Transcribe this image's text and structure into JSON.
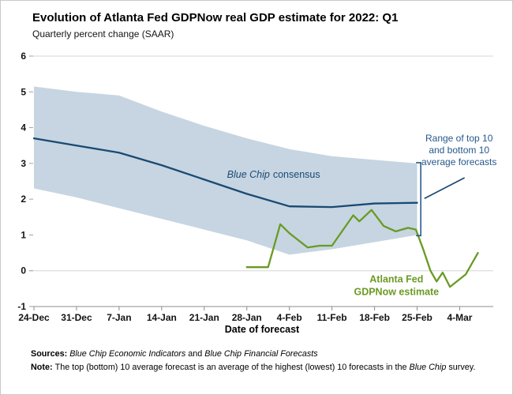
{
  "header": {
    "title": "Evolution of Atlanta Fed GDPNow real GDP estimate for 2022: Q1",
    "subtitle": "Quarterly percent change (SAAR)"
  },
  "chart_data": {
    "type": "line",
    "title": "Evolution of Atlanta Fed GDPNow real GDP estimate for 2022: Q1",
    "subtitle": "Quarterly percent change (SAAR)",
    "x_axis": {
      "label": "Date of forecast",
      "range_days": [
        0,
        75
      ],
      "tick_days": [
        0,
        7,
        14,
        21,
        28,
        35,
        42,
        49,
        56,
        63,
        70
      ],
      "tick_labels": [
        "24-Dec",
        "31-Dec",
        "7-Jan",
        "14-Jan",
        "21-Jan",
        "28-Jan",
        "4-Feb",
        "11-Feb",
        "18-Feb",
        "25-Feb",
        "4-Mar"
      ]
    },
    "y_axis": {
      "label": "Quarterly percent change (SAAR)",
      "range": [
        -1,
        6
      ],
      "ticks": [
        -1,
        0,
        1,
        2,
        3,
        4,
        5,
        6
      ],
      "gridlines_at": [
        0,
        6
      ]
    },
    "series": [
      {
        "name": "Range of top 10 and bottom 10 average forecasts",
        "type": "band",
        "color": "#c6d5e1",
        "points_top": [
          [
            0,
            5.15
          ],
          [
            7,
            5.0
          ],
          [
            14,
            4.9
          ],
          [
            21,
            4.45
          ],
          [
            28,
            4.05
          ],
          [
            35,
            3.7
          ],
          [
            42,
            3.4
          ],
          [
            49,
            3.2
          ],
          [
            56,
            3.1
          ],
          [
            63,
            3.0
          ]
        ],
        "points_bottom": [
          [
            0,
            2.3
          ],
          [
            7,
            2.05
          ],
          [
            14,
            1.75
          ],
          [
            21,
            1.45
          ],
          [
            28,
            1.15
          ],
          [
            35,
            0.85
          ],
          [
            42,
            0.45
          ],
          [
            49,
            0.6
          ],
          [
            56,
            0.8
          ],
          [
            63,
            1.0
          ]
        ]
      },
      {
        "name": "Blue Chip consensus",
        "type": "line",
        "color": "#1a4a73",
        "points": [
          [
            0,
            3.7
          ],
          [
            7,
            3.5
          ],
          [
            14,
            3.3
          ],
          [
            21,
            2.95
          ],
          [
            28,
            2.55
          ],
          [
            35,
            2.15
          ],
          [
            42,
            1.8
          ],
          [
            49,
            1.78
          ],
          [
            56,
            1.88
          ],
          [
            63,
            1.9
          ]
        ]
      },
      {
        "name": "Atlanta Fed GDPNow estimate",
        "type": "line",
        "color": "#6a9a23",
        "points": [
          [
            35,
            0.1
          ],
          [
            38.5,
            0.1
          ],
          [
            40.5,
            1.3
          ],
          [
            42,
            1.05
          ],
          [
            43.5,
            0.85
          ],
          [
            45,
            0.65
          ],
          [
            47,
            0.7
          ],
          [
            49,
            0.7
          ],
          [
            52.5,
            1.55
          ],
          [
            53.5,
            1.38
          ],
          [
            55.5,
            1.7
          ],
          [
            57.5,
            1.25
          ],
          [
            59.5,
            1.1
          ],
          [
            61.5,
            1.2
          ],
          [
            62.8,
            1.15
          ],
          [
            64,
            0.6
          ],
          [
            65.2,
            0.0
          ],
          [
            66.2,
            -0.3
          ],
          [
            67.2,
            -0.05
          ],
          [
            68.4,
            -0.45
          ],
          [
            71,
            -0.1
          ],
          [
            73,
            0.5
          ]
        ]
      }
    ],
    "annotations": {
      "blue_chip_label": {
        "italic_part": "Blue Chip",
        "normal_part": "consensus",
        "x": 39.4,
        "y": 2.6,
        "color": "#1a4a73"
      },
      "range_label": {
        "lines": [
          "Range of top 10",
          "and bottom 10",
          "average forecasts"
        ],
        "x": 69.9,
        "y": 3.62,
        "color": "#27598c"
      },
      "gdpnow_label": {
        "lines": [
          "Atlanta Fed",
          "GDPNow estimate"
        ],
        "x": 59.6,
        "y": -0.33,
        "color": "#6a9a23"
      },
      "bracket": {
        "x": 63.6,
        "y_top": 3.02,
        "y_bottom": 0.98,
        "color": "#27598c"
      },
      "leader_line": {
        "x1": 64.2,
        "y1": 2.02,
        "x2": 70.8,
        "y2": 2.6,
        "color": "#1a4a73"
      }
    },
    "legend_position": "annotated-inline",
    "grid": "horizontal-sparse"
  },
  "footer": {
    "sources_segments": [
      {
        "text": "Sources: ",
        "bold": true
      },
      {
        "text": "Blue Chip Economic Indicators",
        "italic": true
      },
      {
        "text": " and "
      },
      {
        "text": "Blue Chip Financial Forecasts",
        "italic": true
      }
    ],
    "note_segments": [
      {
        "text": "Note: ",
        "bold": true
      },
      {
        "text": "The top (bottom) 10 average forecast is an average of the highest (lowest) 10 forecasts in the "
      },
      {
        "text": "Blue Chip",
        "italic": true
      },
      {
        "text": " survey."
      }
    ]
  }
}
